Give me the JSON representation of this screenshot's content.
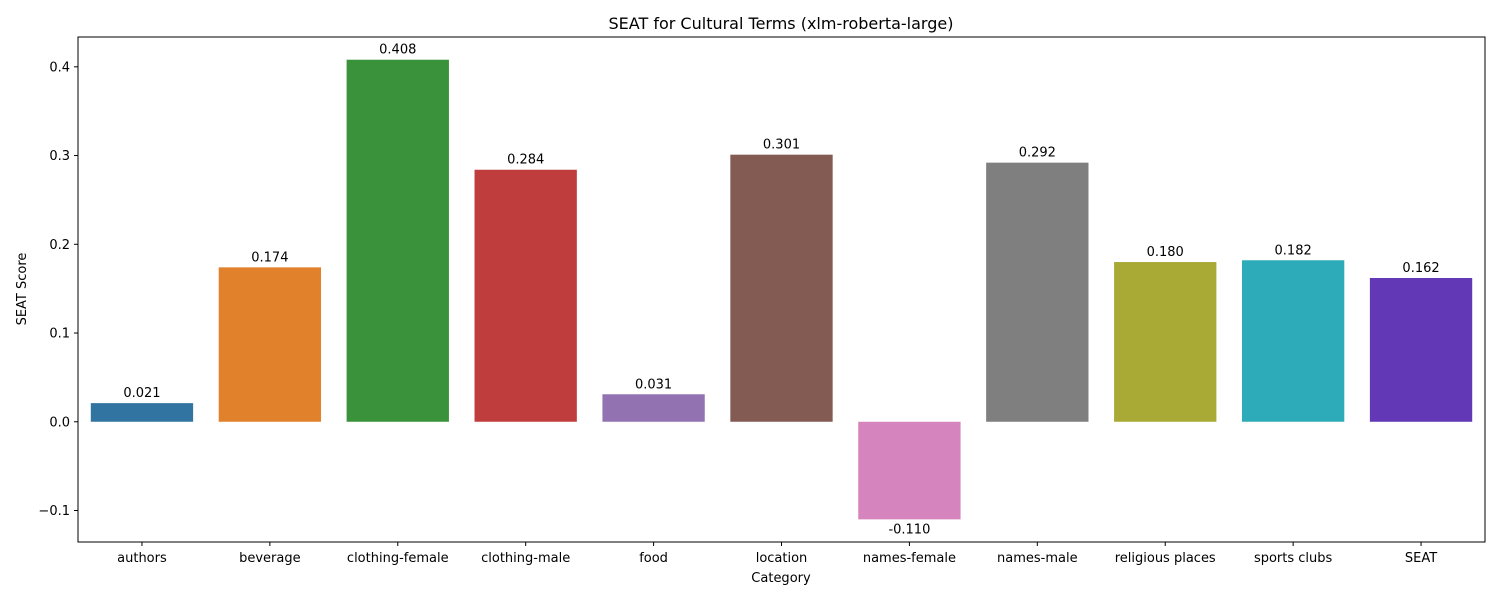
{
  "chart_data": {
    "type": "bar",
    "title": "SEAT for Cultural Terms (xlm-roberta-large)",
    "xlabel": "Category",
    "ylabel": "SEAT Score",
    "categories": [
      "authors",
      "beverage",
      "clothing-female",
      "clothing-male",
      "food",
      "location",
      "names-female",
      "names-male",
      "religious places",
      "sports clubs",
      "SEAT"
    ],
    "values": [
      0.021,
      0.174,
      0.408,
      0.284,
      0.031,
      0.301,
      -0.11,
      0.292,
      0.18,
      0.182,
      0.162
    ],
    "value_labels": [
      "0.021",
      "0.174",
      "0.408",
      "0.284",
      "0.031",
      "0.301",
      "-0.110",
      "0.292",
      "0.180",
      "0.182",
      "0.162"
    ],
    "colors": [
      "#3274a1",
      "#e1812c",
      "#3a923a",
      "#c03d3e",
      "#9372b2",
      "#845b53",
      "#d684bd",
      "#7f7f7f",
      "#a9aa35",
      "#2eabb8",
      "#6238b6"
    ],
    "yticks": [
      -0.1,
      0.0,
      0.1,
      0.2,
      0.3,
      0.4
    ],
    "ytick_labels": [
      "−0.1",
      "0.0",
      "0.1",
      "0.2",
      "0.3",
      "0.4"
    ],
    "ylim": [
      -0.1355,
      0.4336
    ],
    "grid": false,
    "legend": "none"
  }
}
